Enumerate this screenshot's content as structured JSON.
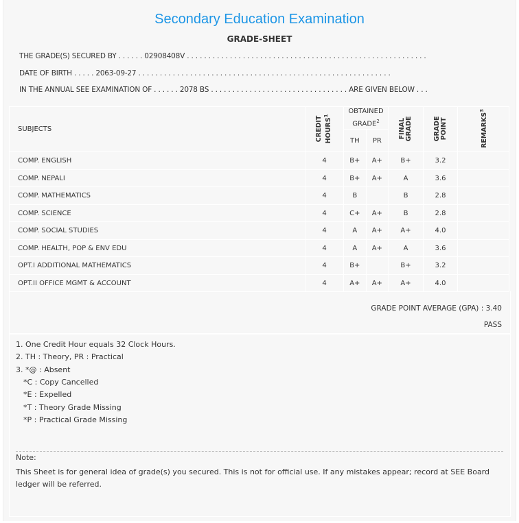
{
  "title": "Secondary Education Examination",
  "subtitle": "GRADE-SHEET",
  "info": {
    "secured_by": "THE GRADE(S) SECURED BY . . . . . . 02908408V . . . . . . . . . . . . . . . . . . . . . . . . . . . . . . . . . . . . . . . . . . . . . . . . . . . . . . . .",
    "dob": "DATE OF BIRTH . . . . . 2063-09-27 . . . . . . . . . . . . . . . . . . . . . . . . . . . . . . . . . . . . . . . . . . . . . . . . . . . . . . . . . . .",
    "exam": "IN THE ANNUAL SEE EXAMINATION OF . . . . . . 2078 BS . . . . . . . . . . . . . . . . . . . . . . . . . . . . . . . . ARE GIVEN BELOW . . ."
  },
  "headers": {
    "subjects": "SUBJECTS",
    "credit": "CREDIT HOURS",
    "credit_sup": "1",
    "obtained": "OBTAINED GRADE",
    "obtained_sup": "2",
    "th": "TH",
    "pr": "PR",
    "final": "FINAL GRADE",
    "point": "GRADE POINT",
    "remarks": "REMARKS",
    "remarks_sup": "3"
  },
  "rows": [
    {
      "subject": "COMP. ENGLISH",
      "credit": "4",
      "th": "B+",
      "pr": "A+",
      "final": "B+",
      "point": "3.2",
      "remarks": ""
    },
    {
      "subject": "COMP. NEPALI",
      "credit": "4",
      "th": "B+",
      "pr": "A+",
      "final": "A",
      "point": "3.6",
      "remarks": ""
    },
    {
      "subject": "COMP. MATHEMATICS",
      "credit": "4",
      "th": "B",
      "pr": "",
      "final": "B",
      "point": "2.8",
      "remarks": ""
    },
    {
      "subject": "COMP. SCIENCE",
      "credit": "4",
      "th": "C+",
      "pr": "A+",
      "final": "B",
      "point": "2.8",
      "remarks": ""
    },
    {
      "subject": "COMP. SOCIAL STUDIES",
      "credit": "4",
      "th": "A",
      "pr": "A+",
      "final": "A+",
      "point": "4.0",
      "remarks": ""
    },
    {
      "subject": "COMP. HEALTH, POP & ENV EDU",
      "credit": "4",
      "th": "A",
      "pr": "A+",
      "final": "A",
      "point": "3.6",
      "remarks": ""
    },
    {
      "subject": "OPT.I ADDITIONAL MATHEMATICS",
      "credit": "4",
      "th": "B+",
      "pr": "",
      "final": "B+",
      "point": "3.2",
      "remarks": ""
    },
    {
      "subject": "OPT.II OFFICE MGMT & ACCOUNT",
      "credit": "4",
      "th": "A+",
      "pr": "A+",
      "final": "A+",
      "point": "4.0",
      "remarks": ""
    }
  ],
  "gpa": "GRADE POINT AVERAGE (GPA) : 3.40",
  "result": "PASS",
  "footnotes": [
    "1. One Credit Hour equals 32 Clock Hours.",
    "2. TH : Theory, PR : Practical",
    "3. *@ : Absent",
    "*C : Copy Cancelled",
    "*E : Expelled",
    "*T : Theory Grade Missing",
    "*P : Practical Grade Missing"
  ],
  "note_label": "Note:",
  "note_text": "This Sheet is for general idea of grade(s) you secured. This is not for official use. If any mistakes appear; record at SEE Board ledger will be referred."
}
